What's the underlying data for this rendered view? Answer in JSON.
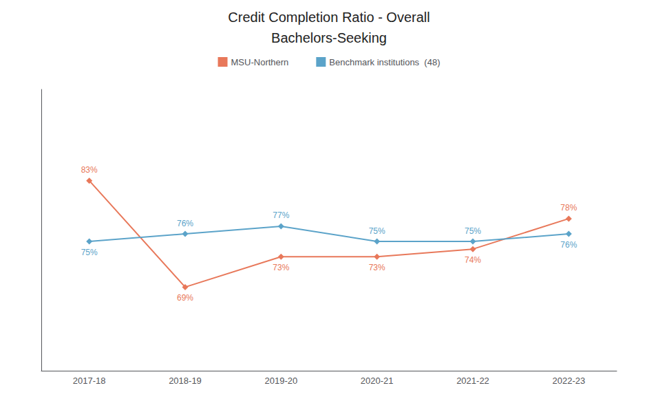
{
  "chart_data": {
    "type": "line",
    "title": "Credit Completion Ratio - Overall",
    "subtitle": "Bachelors-Seeking",
    "categories": [
      "2017-18",
      "2018-19",
      "2019-20",
      "2020-21",
      "2021-22",
      "2022-23"
    ],
    "series": [
      {
        "name": "MSU-Northern",
        "color": "#E8785A",
        "marker": "diamond",
        "values": [
          83,
          69,
          73,
          73,
          74,
          78
        ],
        "value_labels": [
          "83%",
          "69%",
          "73%",
          "73%",
          "74%",
          "78%"
        ]
      },
      {
        "name": "Benchmark institutions  (48)",
        "color": "#5BA3C9",
        "marker": "diamond",
        "values": [
          75,
          76,
          77,
          75,
          75,
          76
        ],
        "value_labels": [
          "75%",
          "76%",
          "77%",
          "75%",
          "75%",
          "76%"
        ]
      }
    ],
    "ylim": [
      58,
      95
    ],
    "grid": false,
    "legend": "top",
    "data_labels": true,
    "tick_labels": "x"
  }
}
